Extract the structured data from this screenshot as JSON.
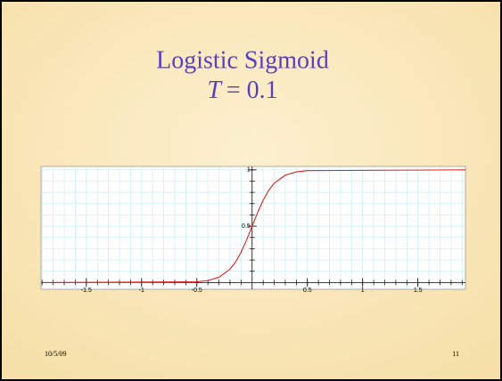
{
  "slide": {
    "date": "10/5/09",
    "page": "11"
  },
  "chart_data": {
    "type": "line",
    "title": "Logistic Sigmoid",
    "subtitle": [
      "T",
      "= 0.1"
    ],
    "x": [
      -1.9,
      -0.5,
      -0.4,
      -0.3,
      -0.2,
      -0.15,
      -0.1,
      -0.05,
      0,
      0.05,
      0.1,
      0.15,
      0.2,
      0.3,
      0.4,
      0.5,
      1.93
    ],
    "series": [
      {
        "color": "#e0201a",
        "values": [
          0,
          0.0067,
          0.018,
          0.047,
          0.119,
          0.182,
          0.269,
          0.378,
          0.5,
          0.622,
          0.731,
          0.818,
          0.881,
          0.953,
          0.982,
          0.993,
          1
        ]
      }
    ],
    "xlim": [
      -1.91,
      1.93
    ],
    "ylim": [
      -0.06,
      1.03
    ],
    "xticks": [
      -1.5,
      -1,
      -0.5,
      0.5,
      1,
      1.5
    ],
    "yticks": [
      0.5,
      1
    ],
    "xminorticks": [
      -1.9,
      -1.8,
      -1.7,
      -1.6,
      -1.5,
      -1.4,
      -1.3,
      -1.2,
      -1.1,
      -1,
      -0.9,
      -0.8,
      -0.7,
      -0.6,
      -0.5,
      -0.4,
      -0.3,
      -0.2,
      -0.1,
      0.1,
      0.2,
      0.3,
      0.4,
      0.5,
      0.6,
      0.7,
      0.8,
      0.9,
      1,
      1.1,
      1.2,
      1.3,
      1.4,
      1.5,
      1.6,
      1.7,
      1.8,
      1.9
    ],
    "yminorticks": [
      0.1,
      0.2,
      0.3,
      0.4,
      0.5,
      0.6,
      0.7,
      0.8,
      0.9,
      1
    ],
    "grid": true
  }
}
